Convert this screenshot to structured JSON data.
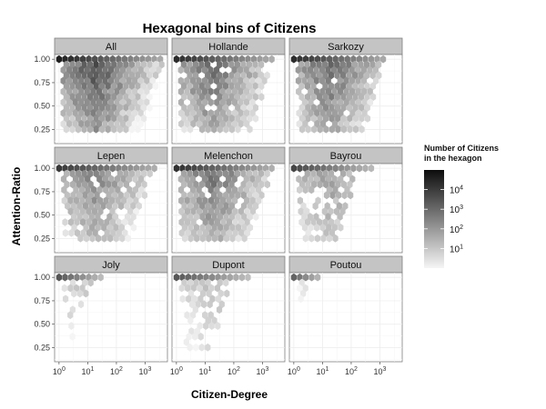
{
  "chart_data": {
    "type": "heatmap",
    "subtype": "hexbin-facet",
    "title": "Hexagonal bins of Citizens",
    "xlabel": "Citizen-Degree",
    "ylabel": "Attention-Ratio",
    "x_scale": "log10",
    "xlim": [
      0.7,
      6000
    ],
    "ylim": [
      0.1,
      1.05
    ],
    "x_ticks": [
      {
        "value": 1,
        "base": "10",
        "exp": "0"
      },
      {
        "value": 10,
        "base": "10",
        "exp": "1"
      },
      {
        "value": 100,
        "base": "10",
        "exp": "2"
      },
      {
        "value": 1000,
        "base": "10",
        "exp": "3"
      }
    ],
    "y_ticks": [
      {
        "value": 0.25,
        "label": "0.25"
      },
      {
        "value": 0.5,
        "label": "0.50"
      },
      {
        "value": 0.75,
        "label": "0.75"
      },
      {
        "value": 1.0,
        "label": "1.00"
      }
    ],
    "grid": true,
    "facets": [
      {
        "name": "All",
        "max_log_degree": 3.6,
        "min_attention": 0.2,
        "density": 1.0,
        "spread": 1.0
      },
      {
        "name": "Hollande",
        "max_log_degree": 3.4,
        "min_attention": 0.2,
        "density": 0.85,
        "spread": 0.95
      },
      {
        "name": "Sarkozy",
        "max_log_degree": 3.3,
        "min_attention": 0.25,
        "density": 0.85,
        "spread": 0.9
      },
      {
        "name": "Lepen",
        "max_log_degree": 3.5,
        "min_attention": 0.2,
        "density": 0.7,
        "spread": 0.8
      },
      {
        "name": "Melenchon",
        "max_log_degree": 3.4,
        "min_attention": 0.25,
        "density": 0.8,
        "spread": 0.9
      },
      {
        "name": "Bayrou",
        "max_log_degree": 2.7,
        "min_attention": 0.2,
        "density": 0.55,
        "spread": 0.6
      },
      {
        "name": "Joly",
        "max_log_degree": 1.5,
        "min_attention": 0.2,
        "density": 0.35,
        "spread": 0.35
      },
      {
        "name": "Dupont",
        "max_log_degree": 2.5,
        "min_attention": 0.15,
        "density": 0.35,
        "spread": 0.45
      },
      {
        "name": "Poutou",
        "max_log_degree": 1.0,
        "min_attention": 0.25,
        "density": 0.2,
        "spread": 0.2
      }
    ],
    "legend": {
      "title_lines": [
        "Number of Citizens",
        " in the hexagon"
      ],
      "placement": "right",
      "scale": "log10",
      "range": [
        1,
        100000
      ],
      "ticks": [
        {
          "value": 10,
          "base": "10",
          "exp": "1"
        },
        {
          "value": 100,
          "base": "10",
          "exp": "2"
        },
        {
          "value": 1000,
          "base": "10",
          "exp": "3"
        },
        {
          "value": 10000,
          "base": "10",
          "exp": "4"
        }
      ],
      "color_low": "#f5f5f5",
      "color_high": "#0d0d0d"
    }
  }
}
